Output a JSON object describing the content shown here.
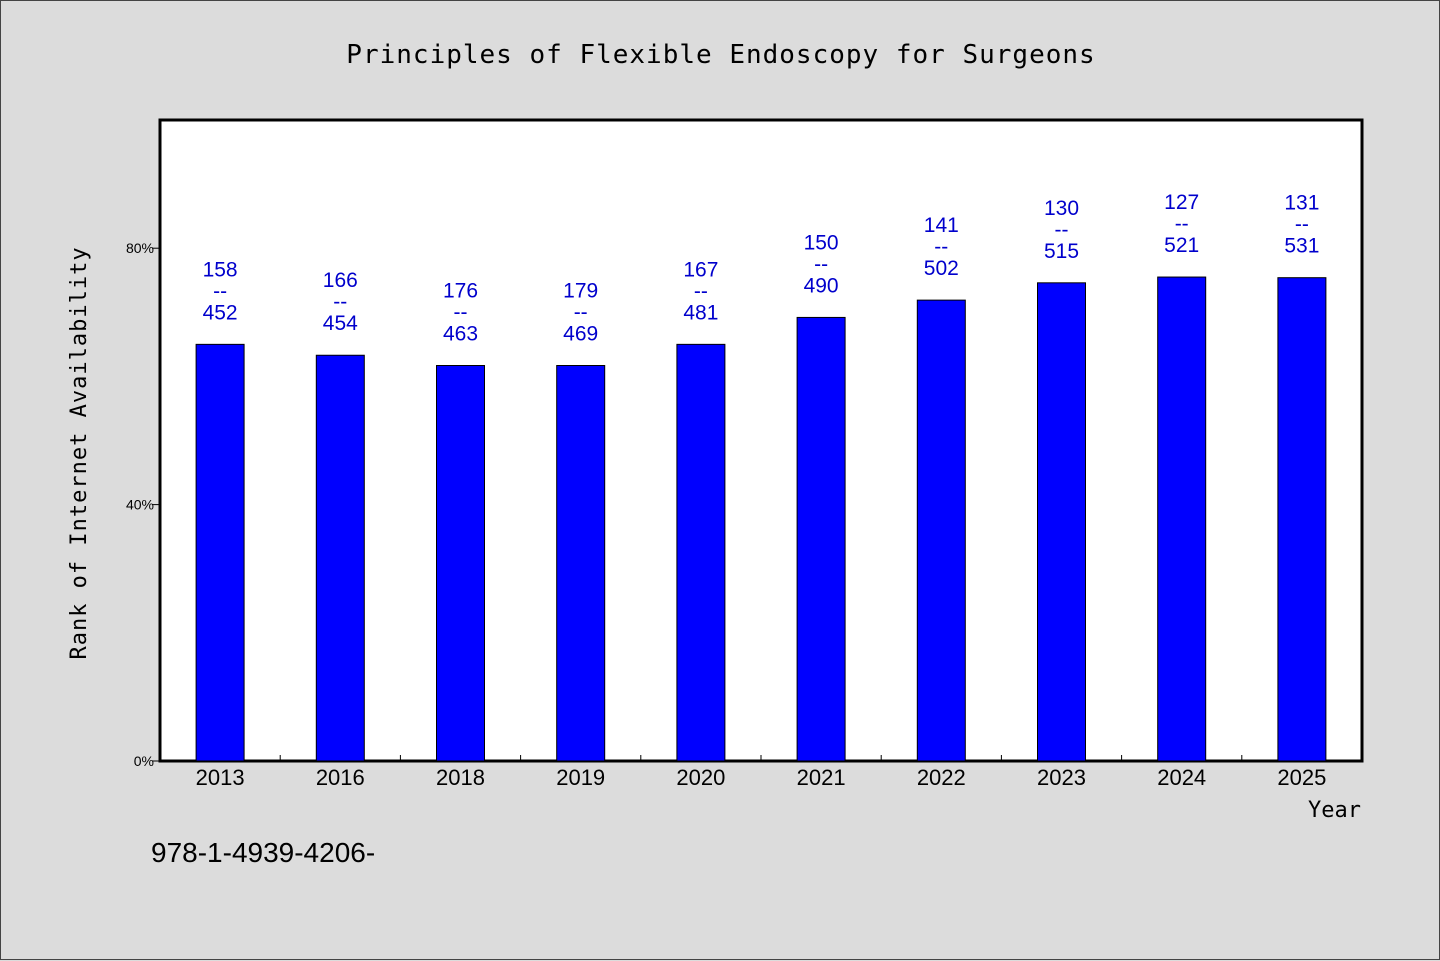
{
  "chart_data": {
    "type": "bar",
    "title": "Principles of Flexible Endoscopy for Surgeons",
    "xlabel": "Year",
    "ylabel": "Rank of Internet Availability",
    "categories": [
      "2013",
      "2016",
      "2018",
      "2019",
      "2020",
      "2021",
      "2022",
      "2023",
      "2024",
      "2025"
    ],
    "values": [
      65,
      63.3,
      61.7,
      61.7,
      65,
      69.2,
      71.9,
      74.6,
      75.5,
      75.4
    ],
    "labels": [
      [
        "158",
        "--",
        "452"
      ],
      [
        "166",
        "--",
        "454"
      ],
      [
        "176",
        "--",
        "463"
      ],
      [
        "179",
        "--",
        "469"
      ],
      [
        "167",
        "--",
        "481"
      ],
      [
        "150",
        "--",
        "490"
      ],
      [
        "141",
        "--",
        "502"
      ],
      [
        "130",
        "--",
        "515"
      ],
      [
        "127",
        "--",
        "521"
      ],
      [
        "131",
        "--",
        "531"
      ]
    ],
    "yticks": [
      0,
      40,
      80
    ],
    "ytick_labels": [
      "0%",
      "40%",
      "80%"
    ],
    "ylim": [
      0,
      100
    ],
    "bar_color": "#0000ff",
    "label_color": "#0000cc",
    "grid": false,
    "legend": "none"
  },
  "footer": {
    "isbn": "978-1-4939-4206-"
  }
}
